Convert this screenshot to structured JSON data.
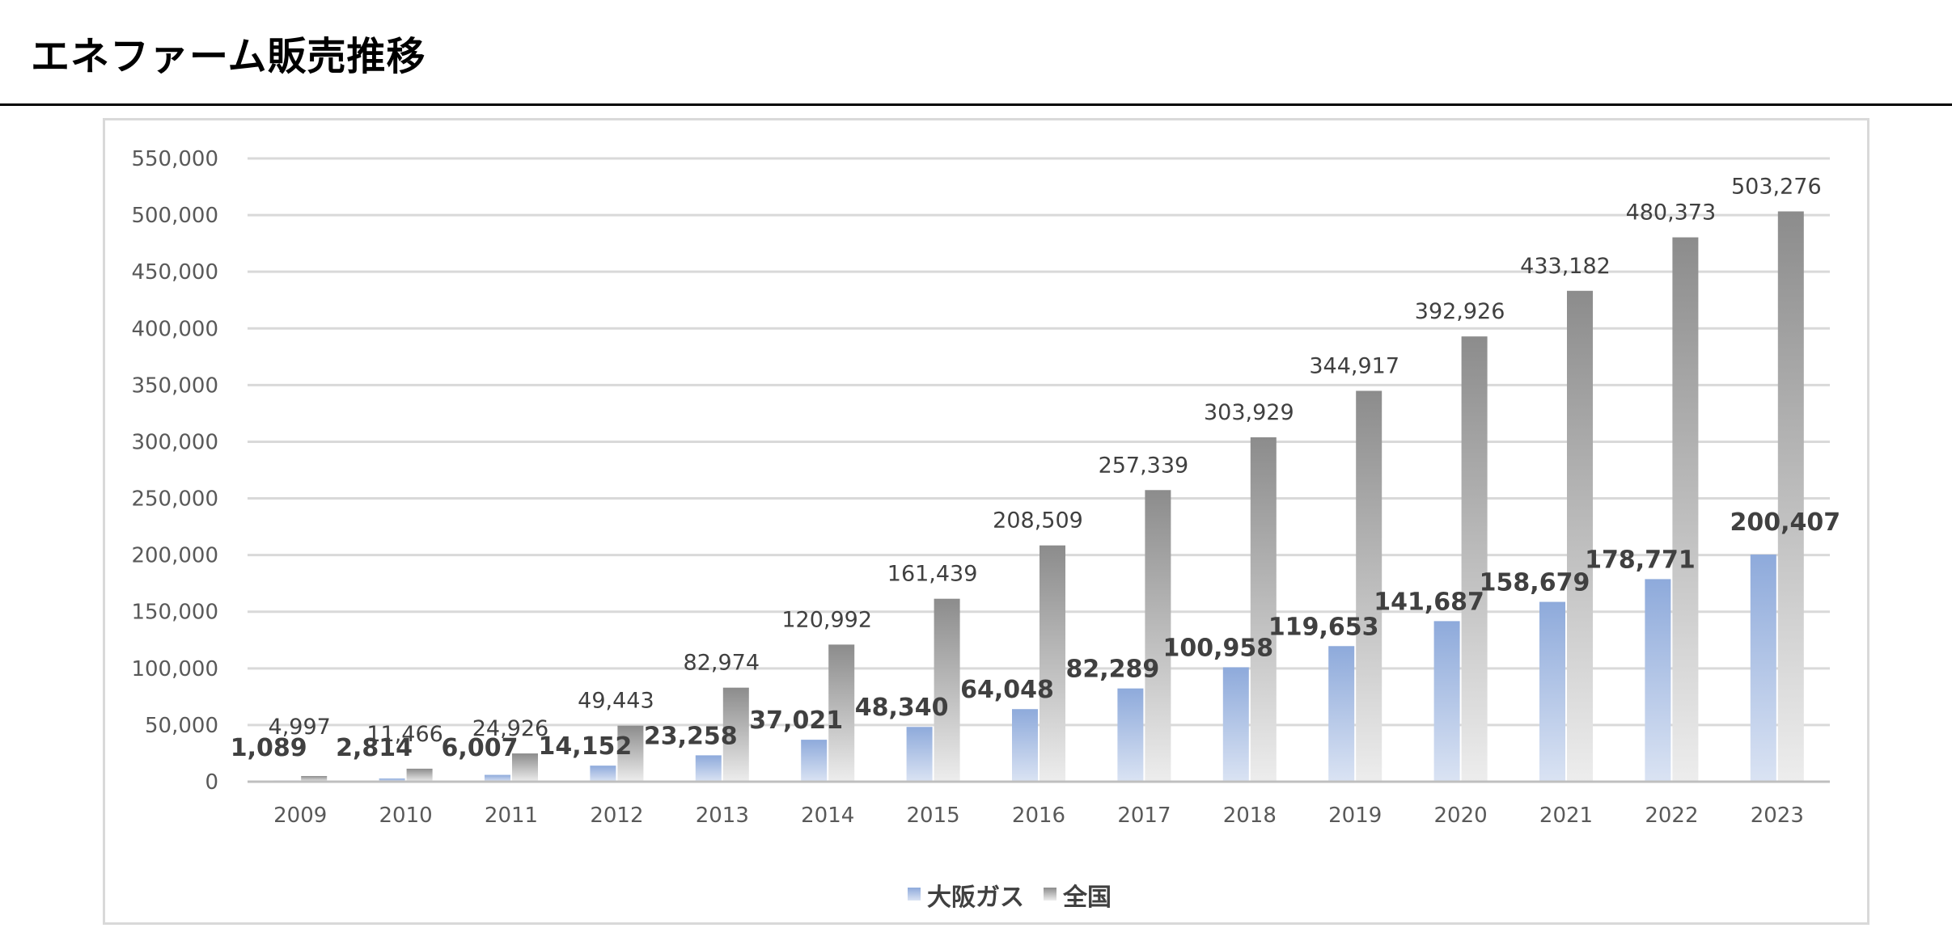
{
  "page": {
    "title": "エネファーム販売推移"
  },
  "chart_data": {
    "type": "bar",
    "title": "",
    "xlabel": "",
    "ylabel": "",
    "categories": [
      "2009",
      "2010",
      "2011",
      "2012",
      "2013",
      "2014",
      "2015",
      "2016",
      "2017",
      "2018",
      "2019",
      "2020",
      "2021",
      "2022",
      "2023"
    ],
    "series": [
      {
        "name": "大阪ガス",
        "values": [
          1089,
          2814,
          6007,
          14152,
          23258,
          37021,
          48340,
          64048,
          82289,
          100958,
          119653,
          141687,
          158679,
          178771,
          200407
        ],
        "labels": [
          "1,089",
          "2,814",
          "6,007",
          "14,152",
          "23,258",
          "37,021",
          "48,340",
          "64,048",
          "82,289",
          "100,958",
          "119,653",
          "141,687",
          "158,679",
          "178,771",
          "200,407"
        ],
        "color": "#8eaadb",
        "highlight_color": "#ff0000"
      },
      {
        "name": "全国",
        "values": [
          4997,
          11466,
          24926,
          49443,
          82974,
          120992,
          161439,
          208509,
          257339,
          303929,
          344917,
          392926,
          433182,
          480373,
          503276
        ],
        "labels": [
          "4,997",
          "11,466",
          "24,926",
          "49,443",
          "82,974",
          "120,992",
          "161,439",
          "208,509",
          "257,339",
          "303,929",
          "344,917",
          "392,926",
          "433,182",
          "480,373",
          "503,276"
        ],
        "color": "#8c8c8c"
      }
    ],
    "ylim": [
      0,
      550000
    ],
    "yticks": [
      0,
      50000,
      100000,
      150000,
      200000,
      250000,
      300000,
      350000,
      400000,
      450000,
      500000,
      550000
    ],
    "ytick_labels": [
      "0",
      "50,000",
      "100,000",
      "150,000",
      "200,000",
      "250,000",
      "300,000",
      "350,000",
      "400,000",
      "450,000",
      "500,000",
      "550,000"
    ],
    "grid": true,
    "legend_position": "bottom"
  }
}
